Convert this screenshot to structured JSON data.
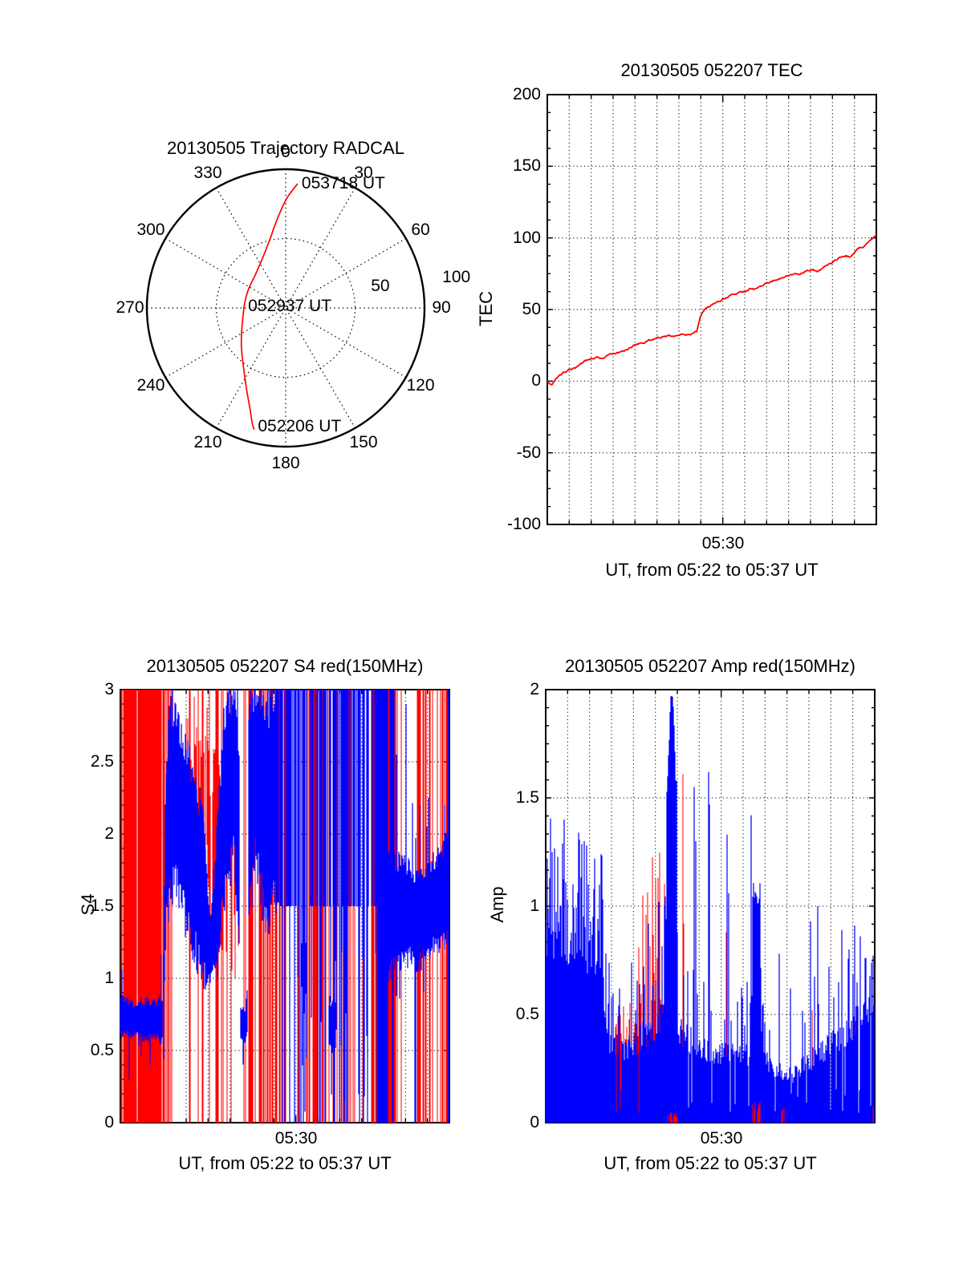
{
  "colors": {
    "red": "#ff0000",
    "blue": "#0000ff",
    "axis": "#000000",
    "background": "#ffffff"
  },
  "panels": {
    "trajectory": {
      "title": "20130505 Trajectory RADCAL",
      "azimuth_labels": [
        "0",
        "30",
        "60",
        "90",
        "120",
        "150",
        "180",
        "210",
        "240",
        "270",
        "300",
        "330"
      ],
      "radial_labels": [
        "50",
        "100"
      ]
    },
    "tec": {
      "title": "20130505 052207 TEC",
      "ylabel": "TEC",
      "xlabel": "UT, from 05:22 to 05:37 UT",
      "xtick_label": "05:30",
      "ytick_labels": [
        "200",
        "150",
        "100",
        "50",
        "0",
        "-50",
        "-100"
      ]
    },
    "s4": {
      "title": "20130505 052207 S4 red(150MHz)",
      "ylabel": "S4",
      "xlabel": "UT, from 05:22 to 05:37 UT",
      "xtick_label": "05:30",
      "ytick_labels": [
        "3",
        "2.5",
        "2",
        "1.5",
        "1",
        "0.5",
        "0"
      ]
    },
    "amp": {
      "title": "20130505 052207 Amp red(150MHz)",
      "ylabel": "Amp",
      "xlabel": "UT, from 05:22 to 05:37 UT",
      "xtick_label": "05:30",
      "ytick_labels": [
        "2",
        "1.5",
        "1",
        "0.5",
        "0"
      ]
    }
  },
  "chart_data": [
    {
      "id": "trajectory",
      "type": "line",
      "projection": "polar",
      "title": "20130505 Trajectory RADCAL",
      "azimuth_ticks_deg": [
        0,
        30,
        60,
        90,
        120,
        150,
        180,
        210,
        240,
        270,
        300,
        330
      ],
      "radial_ticks": [
        50,
        100
      ],
      "radial_max": 100,
      "series": [
        {
          "name": "trajectory",
          "color": "#ff0000",
          "points_az_r": [
            [
              5.5,
              90
            ],
            [
              1,
              80
            ],
            [
              357,
              70
            ],
            [
              352.5,
              60
            ],
            [
              348,
              52
            ],
            [
              342,
              45
            ],
            [
              335,
              39.5
            ],
            [
              327,
              35.5
            ],
            [
              318,
              32.5
            ],
            [
              308,
              30.8
            ],
            [
              297,
              30.0
            ],
            [
              285,
              29.6
            ],
            [
              271,
              30.0
            ],
            [
              258,
              31.5
            ],
            [
              246,
              34.5
            ],
            [
              236,
              38.5
            ],
            [
              227,
              43.5
            ],
            [
              218,
              50
            ],
            [
              210.5,
              58
            ],
            [
              204.5,
              67
            ],
            [
              199.5,
              77
            ],
            [
              196,
              87
            ],
            [
              194.5,
              90.5
            ]
          ]
        }
      ],
      "annotations": [
        {
          "label": "053718 UT",
          "az": 5.5,
          "r": 90
        },
        {
          "label": "052937 UT",
          "az": 272,
          "r": 30
        },
        {
          "label": "052206 UT",
          "az": 195,
          "r": 88.5
        }
      ]
    },
    {
      "id": "tec",
      "type": "line",
      "title": "20130505 052207 TEC",
      "xlabel": "UT, from 05:22 to 05:37 UT",
      "ylabel": "TEC",
      "x_start": "05:22",
      "x_end": "05:37",
      "x_span_minutes": 15,
      "xtick": {
        "minute": 8,
        "label": "05:30"
      },
      "ylim": [
        -100,
        200
      ],
      "yticks": [
        200,
        150,
        100,
        50,
        0,
        -50,
        -100
      ],
      "grid": true,
      "series": [
        {
          "name": "TEC",
          "color": "#ff0000",
          "points_min_val": [
            [
              0,
              0
            ],
            [
              0.2,
              -2
            ],
            [
              0.5,
              3
            ],
            [
              1,
              8
            ],
            [
              1.5,
              12
            ],
            [
              2,
              15
            ],
            [
              2.3,
              17
            ],
            [
              2.6,
              16
            ],
            [
              3,
              19
            ],
            [
              3.5,
              21
            ],
            [
              4,
              25
            ],
            [
              4.5,
              28
            ],
            [
              5,
              31
            ],
            [
              5.5,
              32
            ],
            [
              6,
              33
            ],
            [
              6.5,
              33
            ],
            [
              6.8,
              34
            ],
            [
              7,
              46
            ],
            [
              7.2,
              50
            ],
            [
              7.5,
              53
            ],
            [
              8,
              57
            ],
            [
              8.5,
              61
            ],
            [
              9,
              63
            ],
            [
              9.3,
              65
            ],
            [
              9.5,
              64
            ],
            [
              10,
              68
            ],
            [
              10.5,
              72
            ],
            [
              11,
              74
            ],
            [
              11.5,
              75
            ],
            [
              12,
              78
            ],
            [
              12.3,
              77
            ],
            [
              12.7,
              80
            ],
            [
              13,
              83
            ],
            [
              13.4,
              87
            ],
            [
              13.6,
              88
            ],
            [
              13.8,
              87
            ],
            [
              14.2,
              92
            ],
            [
              14.6,
              96
            ],
            [
              15,
              100
            ]
          ]
        }
      ]
    },
    {
      "id": "s4",
      "type": "noisy-line",
      "title": "20130505 052207 S4 red(150MHz)",
      "xlabel": "UT, from 05:22 to 05:37 UT",
      "ylabel": "S4",
      "x_start": "05:22",
      "x_end": "05:37",
      "x_span_minutes": 15,
      "xtick": {
        "minute": 8,
        "label": "05:30"
      },
      "ylim": [
        0,
        3
      ],
      "yticks": [
        0,
        0.5,
        1,
        1.5,
        2,
        2.5,
        3
      ],
      "grid": true,
      "note": "blue = S4 trace described by band envelopes [x_fraction, low, high]; red = saturated vertical lines of 150 MHz channel drawn with given density; mixed zone has full-height columns",
      "blue_bands": [
        [
          [
            0.0,
            0.6,
            0.86
          ],
          [
            0.04,
            0.62,
            0.82
          ],
          [
            0.08,
            0.58,
            0.84
          ],
          [
            0.11,
            0.6,
            0.82
          ],
          [
            0.128,
            0.55,
            0.88
          ]
        ],
        [
          [
            0.132,
            0.7,
            1.2
          ],
          [
            0.138,
            1.4,
            2.4
          ],
          [
            0.15,
            1.6,
            2.9
          ],
          [
            0.17,
            1.7,
            2.85
          ],
          [
            0.195,
            1.45,
            2.6
          ],
          [
            0.22,
            1.25,
            2.45
          ],
          [
            0.25,
            1.05,
            2.1
          ],
          [
            0.272,
            0.95,
            1.4
          ],
          [
            0.285,
            1.05,
            1.6
          ],
          [
            0.3,
            1.3,
            2.3
          ],
          [
            0.32,
            1.6,
            2.9
          ],
          [
            0.345,
            1.9,
            3.0
          ],
          [
            0.362,
            1.3,
            2.6
          ]
        ],
        [
          [
            0.366,
            0.58,
            0.82
          ],
          [
            0.38,
            0.55,
            0.78
          ],
          [
            0.386,
            0.6,
            0.9
          ]
        ],
        [
          [
            0.39,
            1.4,
            2.9
          ],
          [
            0.41,
            1.9,
            3.0
          ],
          [
            0.43,
            1.6,
            3.0
          ],
          [
            0.45,
            1.3,
            2.8
          ],
          [
            0.465,
            1.7,
            3.0
          ],
          [
            0.48,
            1.5,
            3.0
          ]
        ],
        [
          [
            0.548,
            0.92,
            1.28
          ],
          [
            0.566,
            0.9,
            1.22
          ]
        ],
        [
          [
            0.633,
            0.52,
            0.85
          ],
          [
            0.654,
            0.5,
            0.8
          ]
        ],
        [
          [
            0.815,
            1.05,
            1.85
          ],
          [
            0.85,
            1.1,
            1.8
          ],
          [
            0.88,
            1.15,
            1.75
          ],
          [
            0.91,
            1.1,
            1.7
          ],
          [
            0.94,
            1.2,
            1.8
          ],
          [
            0.97,
            1.25,
            1.85
          ],
          [
            0.99,
            1.3,
            2.0
          ],
          [
            1.0,
            1.35,
            2.2
          ]
        ]
      ],
      "blue_mixed_zone": {
        "f0": 0.48,
        "f1": 0.835,
        "p_full": 0.16,
        "p_top_half": 0.36,
        "p_partial": 0.12
      },
      "blue_blocks": [
        [
          0.78,
          0.813,
          0,
          3
        ],
        [
          0.894,
          0.897,
          0,
          1.6
        ],
        [
          0.995,
          1.0,
          0,
          3
        ]
      ],
      "blue_spikes": [
        [
          0.838,
          2.55
        ],
        [
          0.868,
          2.9
        ],
        [
          0.932,
          2.05
        ],
        [
          0.985,
          2.2
        ]
      ],
      "red_density": [
        [
          0,
          0.8
        ],
        [
          0.02,
          0.85
        ],
        [
          0.125,
          0.85
        ],
        [
          0.135,
          0.5
        ],
        [
          0.16,
          0.32
        ],
        [
          0.19,
          0.1
        ],
        [
          0.23,
          0.1
        ],
        [
          0.25,
          0.22
        ],
        [
          0.27,
          0.1
        ],
        [
          0.3,
          0.25
        ],
        [
          0.34,
          0.3
        ],
        [
          0.36,
          0.12
        ],
        [
          0.38,
          0.4
        ],
        [
          0.41,
          0.55
        ],
        [
          0.45,
          0.6
        ],
        [
          0.48,
          0.5
        ],
        [
          0.52,
          0.42
        ],
        [
          0.56,
          0.35
        ],
        [
          0.6,
          0.48
        ],
        [
          0.64,
          0.3
        ],
        [
          0.68,
          0.45
        ],
        [
          0.72,
          0.5
        ],
        [
          0.76,
          0.52
        ],
        [
          0.8,
          0.55
        ],
        [
          0.835,
          0.4
        ],
        [
          0.85,
          0.28
        ],
        [
          0.862,
          0.1
        ],
        [
          0.895,
          0.12
        ],
        [
          0.905,
          0.55
        ],
        [
          0.93,
          0.38
        ],
        [
          0.955,
          0.45
        ],
        [
          0.975,
          0.65
        ],
        [
          1.0,
          0.65
        ]
      ],
      "red_partial_zones": [
        [
          0.2,
          0.27,
          0.35,
          1.8,
          2.75
        ],
        [
          0.27,
          0.36,
          0.45,
          1.25,
          2.35
        ]
      ]
    },
    {
      "id": "amp",
      "type": "noisy-area",
      "title": "20130505 052207 Amp red(150MHz)",
      "xlabel": "UT, from 05:22 to 05:37 UT",
      "ylabel": "Amp",
      "x_start": "05:22",
      "x_end": "05:37",
      "x_span_minutes": 15,
      "xtick": {
        "minute": 8,
        "label": "05:30"
      },
      "ylim": [
        0,
        2
      ],
      "yticks": [
        0,
        0.5,
        1,
        1.5,
        2
      ],
      "grid": true,
      "note": "blue = amplitude filled from 0, base envelope points [x_fraction, base]; peak cluster reaches 1.98 near f=0.384; red = second channel spikes",
      "blue_base": [
        [
          0,
          0.88
        ],
        [
          0.02,
          0.92
        ],
        [
          0.05,
          0.9
        ],
        [
          0.09,
          0.86
        ],
        [
          0.13,
          0.82
        ],
        [
          0.17,
          0.79
        ],
        [
          0.18,
          0.45
        ],
        [
          0.2,
          0.36
        ],
        [
          0.24,
          0.33
        ],
        [
          0.28,
          0.38
        ],
        [
          0.32,
          0.42
        ],
        [
          0.36,
          0.5
        ],
        [
          0.4,
          0.42
        ],
        [
          0.44,
          0.38
        ],
        [
          0.48,
          0.33
        ],
        [
          0.52,
          0.3
        ],
        [
          0.56,
          0.33
        ],
        [
          0.6,
          0.3
        ],
        [
          0.625,
          0.32
        ],
        [
          0.63,
          1.05
        ],
        [
          0.652,
          1.08
        ],
        [
          0.655,
          0.3
        ],
        [
          0.7,
          0.24
        ],
        [
          0.75,
          0.22
        ],
        [
          0.8,
          0.28
        ],
        [
          0.84,
          0.33
        ],
        [
          0.88,
          0.38
        ],
        [
          0.92,
          0.44
        ],
        [
          0.96,
          0.48
        ],
        [
          1.0,
          0.5
        ]
      ],
      "blue_peak_cluster": {
        "f0": 0.366,
        "f1": 0.398,
        "center": 0.384,
        "peak": 1.98
      },
      "blue_spikes": [
        [
          0.004,
          1.22
        ],
        [
          0.055,
          1.4
        ],
        [
          0.1,
          1.34
        ],
        [
          0.125,
          1.28
        ],
        [
          0.148,
          1.22
        ],
        [
          0.168,
          1.24
        ],
        [
          0.19,
          0.55
        ],
        [
          0.225,
          0.62
        ],
        [
          0.262,
          0.74
        ],
        [
          0.312,
          0.92
        ],
        [
          0.345,
          1.02
        ],
        [
          0.4,
          0.88
        ],
        [
          0.432,
          0.7
        ],
        [
          0.452,
          1.55
        ],
        [
          0.456,
          1.3
        ],
        [
          0.494,
          1.62
        ],
        [
          0.498,
          1.47
        ],
        [
          0.551,
          1.33
        ],
        [
          0.555,
          1.06
        ],
        [
          0.6255,
          1.42
        ],
        [
          0.662,
          0.55
        ],
        [
          0.71,
          0.78
        ],
        [
          0.745,
          0.62
        ],
        [
          0.805,
          0.93
        ],
        [
          0.826,
          1.0
        ],
        [
          0.862,
          0.72
        ],
        [
          0.9,
          0.89
        ],
        [
          0.922,
          0.8
        ],
        [
          0.938,
          0.91
        ],
        [
          0.957,
          0.86
        ],
        [
          0.972,
          0.76
        ],
        [
          0.99,
          0.74
        ]
      ],
      "spike_zones": [
        [
          0,
          0.18,
          0.3,
          0.5
        ],
        [
          0.18,
          0.36,
          0.12,
          0.35
        ],
        [
          0.4,
          0.625,
          0.1,
          0.35
        ],
        [
          0.655,
          0.8,
          0.08,
          0.3
        ],
        [
          0.8,
          0.88,
          0.18,
          0.45
        ],
        [
          0.88,
          1.0,
          0.22,
          0.4
        ]
      ],
      "red_zones": [
        [
          0.205,
          0.292,
          0.75,
          0.32,
          0.28,
          0.2,
          0.87
        ],
        [
          0.295,
          0.388,
          0.75,
          0.35,
          0.35,
          0.25,
          1.25
        ]
      ],
      "red_spikes": [
        [
          0.417,
          1.61
        ],
        [
          0.42,
          0.92
        ],
        [
          0.548,
          0.88
        ],
        [
          0.552,
          0.5
        ],
        [
          0.455,
          0.3
        ],
        [
          0.81,
          0.52
        ],
        [
          0.938,
          0.65
        ],
        [
          0.941,
          0.47
        ]
      ],
      "red_bottom": [
        [
          0.63,
          0.652,
          0.1
        ],
        [
          0.718,
          0.724,
          0.1
        ],
        [
          0.37,
          0.4,
          0.05
        ],
        [
          0.995,
          1.0,
          0.12
        ]
      ]
    }
  ]
}
